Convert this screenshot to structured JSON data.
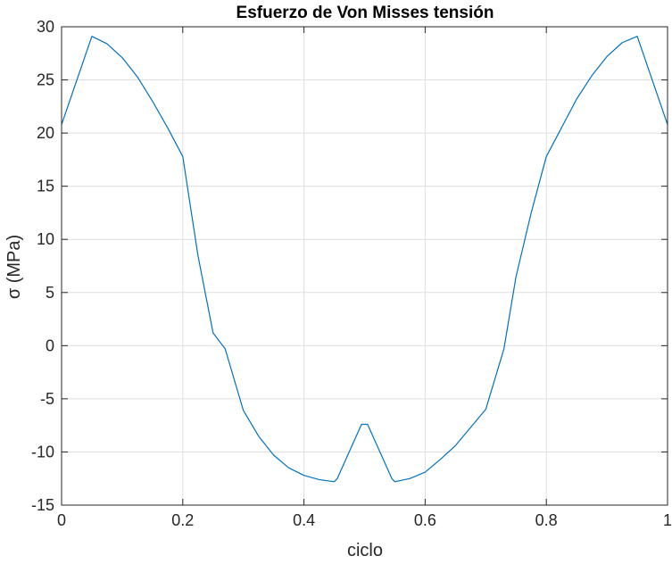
{
  "chart_data": {
    "type": "line",
    "title": "Esfuerzo de Von Misses tensión",
    "xlabel": "ciclo",
    "ylabel": "σ (MPa)",
    "xlim": [
      0,
      1
    ],
    "ylim": [
      -15,
      30
    ],
    "xticks": [
      0,
      0.2,
      0.4,
      0.6,
      0.8,
      1
    ],
    "xtick_labels": [
      "0",
      "0.2",
      "0.4",
      "0.6",
      "0.8",
      "1"
    ],
    "yticks": [
      -15,
      -10,
      -5,
      0,
      5,
      10,
      15,
      20,
      25,
      30
    ],
    "ytick_labels": [
      "-15",
      "-10",
      "-5",
      "0",
      "5",
      "10",
      "15",
      "20",
      "25",
      "30"
    ],
    "grid": true,
    "series": [
      {
        "color": "#0072bd",
        "x": [
          0,
          0.05,
          0.075,
          0.1,
          0.125,
          0.15,
          0.175,
          0.2,
          0.225,
          0.25,
          0.27,
          0.3,
          0.325,
          0.35,
          0.375,
          0.4,
          0.425,
          0.45,
          0.455,
          0.495,
          0.505,
          0.545,
          0.55,
          0.575,
          0.6,
          0.625,
          0.65,
          0.675,
          0.7,
          0.73,
          0.75,
          0.775,
          0.8,
          0.825,
          0.85,
          0.875,
          0.9,
          0.925,
          0.95,
          1
        ],
        "y": [
          20.8,
          29.1,
          28.4,
          27.1,
          25.3,
          23.0,
          20.5,
          17.8,
          8.5,
          1.2,
          -0.3,
          -6.1,
          -8.5,
          -10.3,
          -11.5,
          -12.2,
          -12.6,
          -12.8,
          -12.5,
          -7.4,
          -7.4,
          -12.5,
          -12.8,
          -12.5,
          -11.9,
          -10.7,
          -9.4,
          -7.7,
          -6.0,
          -0.3,
          6.5,
          12.5,
          17.8,
          20.5,
          23.2,
          25.4,
          27.2,
          28.5,
          29.1,
          20.8
        ]
      }
    ]
  }
}
